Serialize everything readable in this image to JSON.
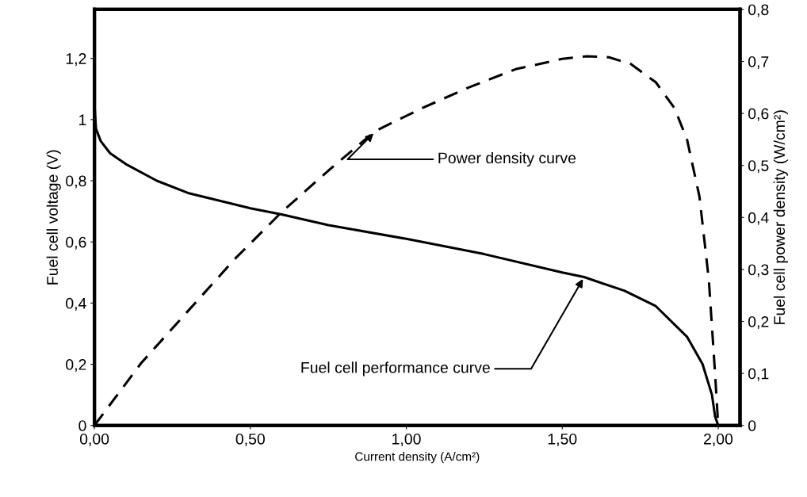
{
  "chart_data": {
    "type": "line",
    "xlabel": "Current density (A/cm²)",
    "ylabel": "Fuel cell voltage (V)",
    "y2label": "Fuel cell power density (W/cm²)",
    "series": [
      {
        "color": "#000000",
        "line_style": "solid",
        "x": [
          0,
          0.005,
          0.02,
          0.05,
          0.1,
          0.2,
          0.3,
          0.5,
          0.6,
          0.75,
          1.0,
          1.25,
          1.5,
          1.57,
          1.7,
          1.8,
          1.9,
          1.95,
          1.98,
          1.99,
          2.0
        ],
        "values": [
          1.05,
          0.97,
          0.93,
          0.89,
          0.855,
          0.8,
          0.76,
          0.71,
          0.69,
          0.655,
          0.61,
          0.56,
          0.5,
          0.485,
          0.44,
          0.39,
          0.29,
          0.2,
          0.1,
          0.03,
          0
        ]
      },
      {
        "color": "#000000",
        "line_style": "dashed",
        "axis": "y2",
        "x": [
          0,
          0.15,
          0.3,
          0.45,
          0.6,
          0.75,
          0.9,
          1.05,
          1.2,
          1.35,
          1.5,
          1.58,
          1.65,
          1.72,
          1.8,
          1.86,
          1.9,
          1.94,
          1.97,
          1.99,
          2.0
        ],
        "values": [
          0,
          0.12,
          0.22,
          0.32,
          0.41,
          0.49,
          0.566,
          0.61,
          0.65,
          0.685,
          0.705,
          0.71,
          0.708,
          0.695,
          0.66,
          0.61,
          0.55,
          0.44,
          0.28,
          0.1,
          0
        ]
      }
    ],
    "xlim": [
      0,
      2.07
    ],
    "xticks": [
      {
        "value": 0,
        "label": "0,00"
      },
      {
        "value": 0.5,
        "label": "0,50"
      },
      {
        "value": 1.0,
        "label": "1,00"
      },
      {
        "value": 1.5,
        "label": "1,50"
      },
      {
        "value": 2.0,
        "label": "2,00"
      }
    ],
    "ylim": [
      0,
      1.36
    ],
    "yticks": [
      0,
      {
        "value": 0.2,
        "label": "0,2"
      },
      {
        "value": 0.4,
        "label": "0,4"
      },
      {
        "value": 0.6,
        "label": "0,6"
      },
      {
        "value": 0.8,
        "label": "0,8"
      },
      1,
      {
        "value": 1.2,
        "label": "1,2"
      }
    ],
    "y2lim": [
      0,
      0.8
    ],
    "y2ticks": [
      0,
      {
        "value": 0.1,
        "label": "0,1"
      },
      {
        "value": 0.2,
        "label": "0,2"
      },
      {
        "value": 0.3,
        "label": "0,3"
      },
      {
        "value": 0.4,
        "label": "0,4"
      },
      {
        "value": 0.5,
        "label": "0,5"
      },
      {
        "value": 0.6,
        "label": "0,6"
      },
      {
        "value": 0.7,
        "label": "0,7"
      },
      {
        "value": 0.8,
        "label": "0,8"
      }
    ],
    "annotations": [
      {
        "text": "Power density curve",
        "x": 0.9,
        "y": 0.96
      },
      {
        "text": "Fuel cell performance curve",
        "x": 1.57,
        "y": 0.485
      }
    ],
    "grid": false,
    "legend": false
  }
}
